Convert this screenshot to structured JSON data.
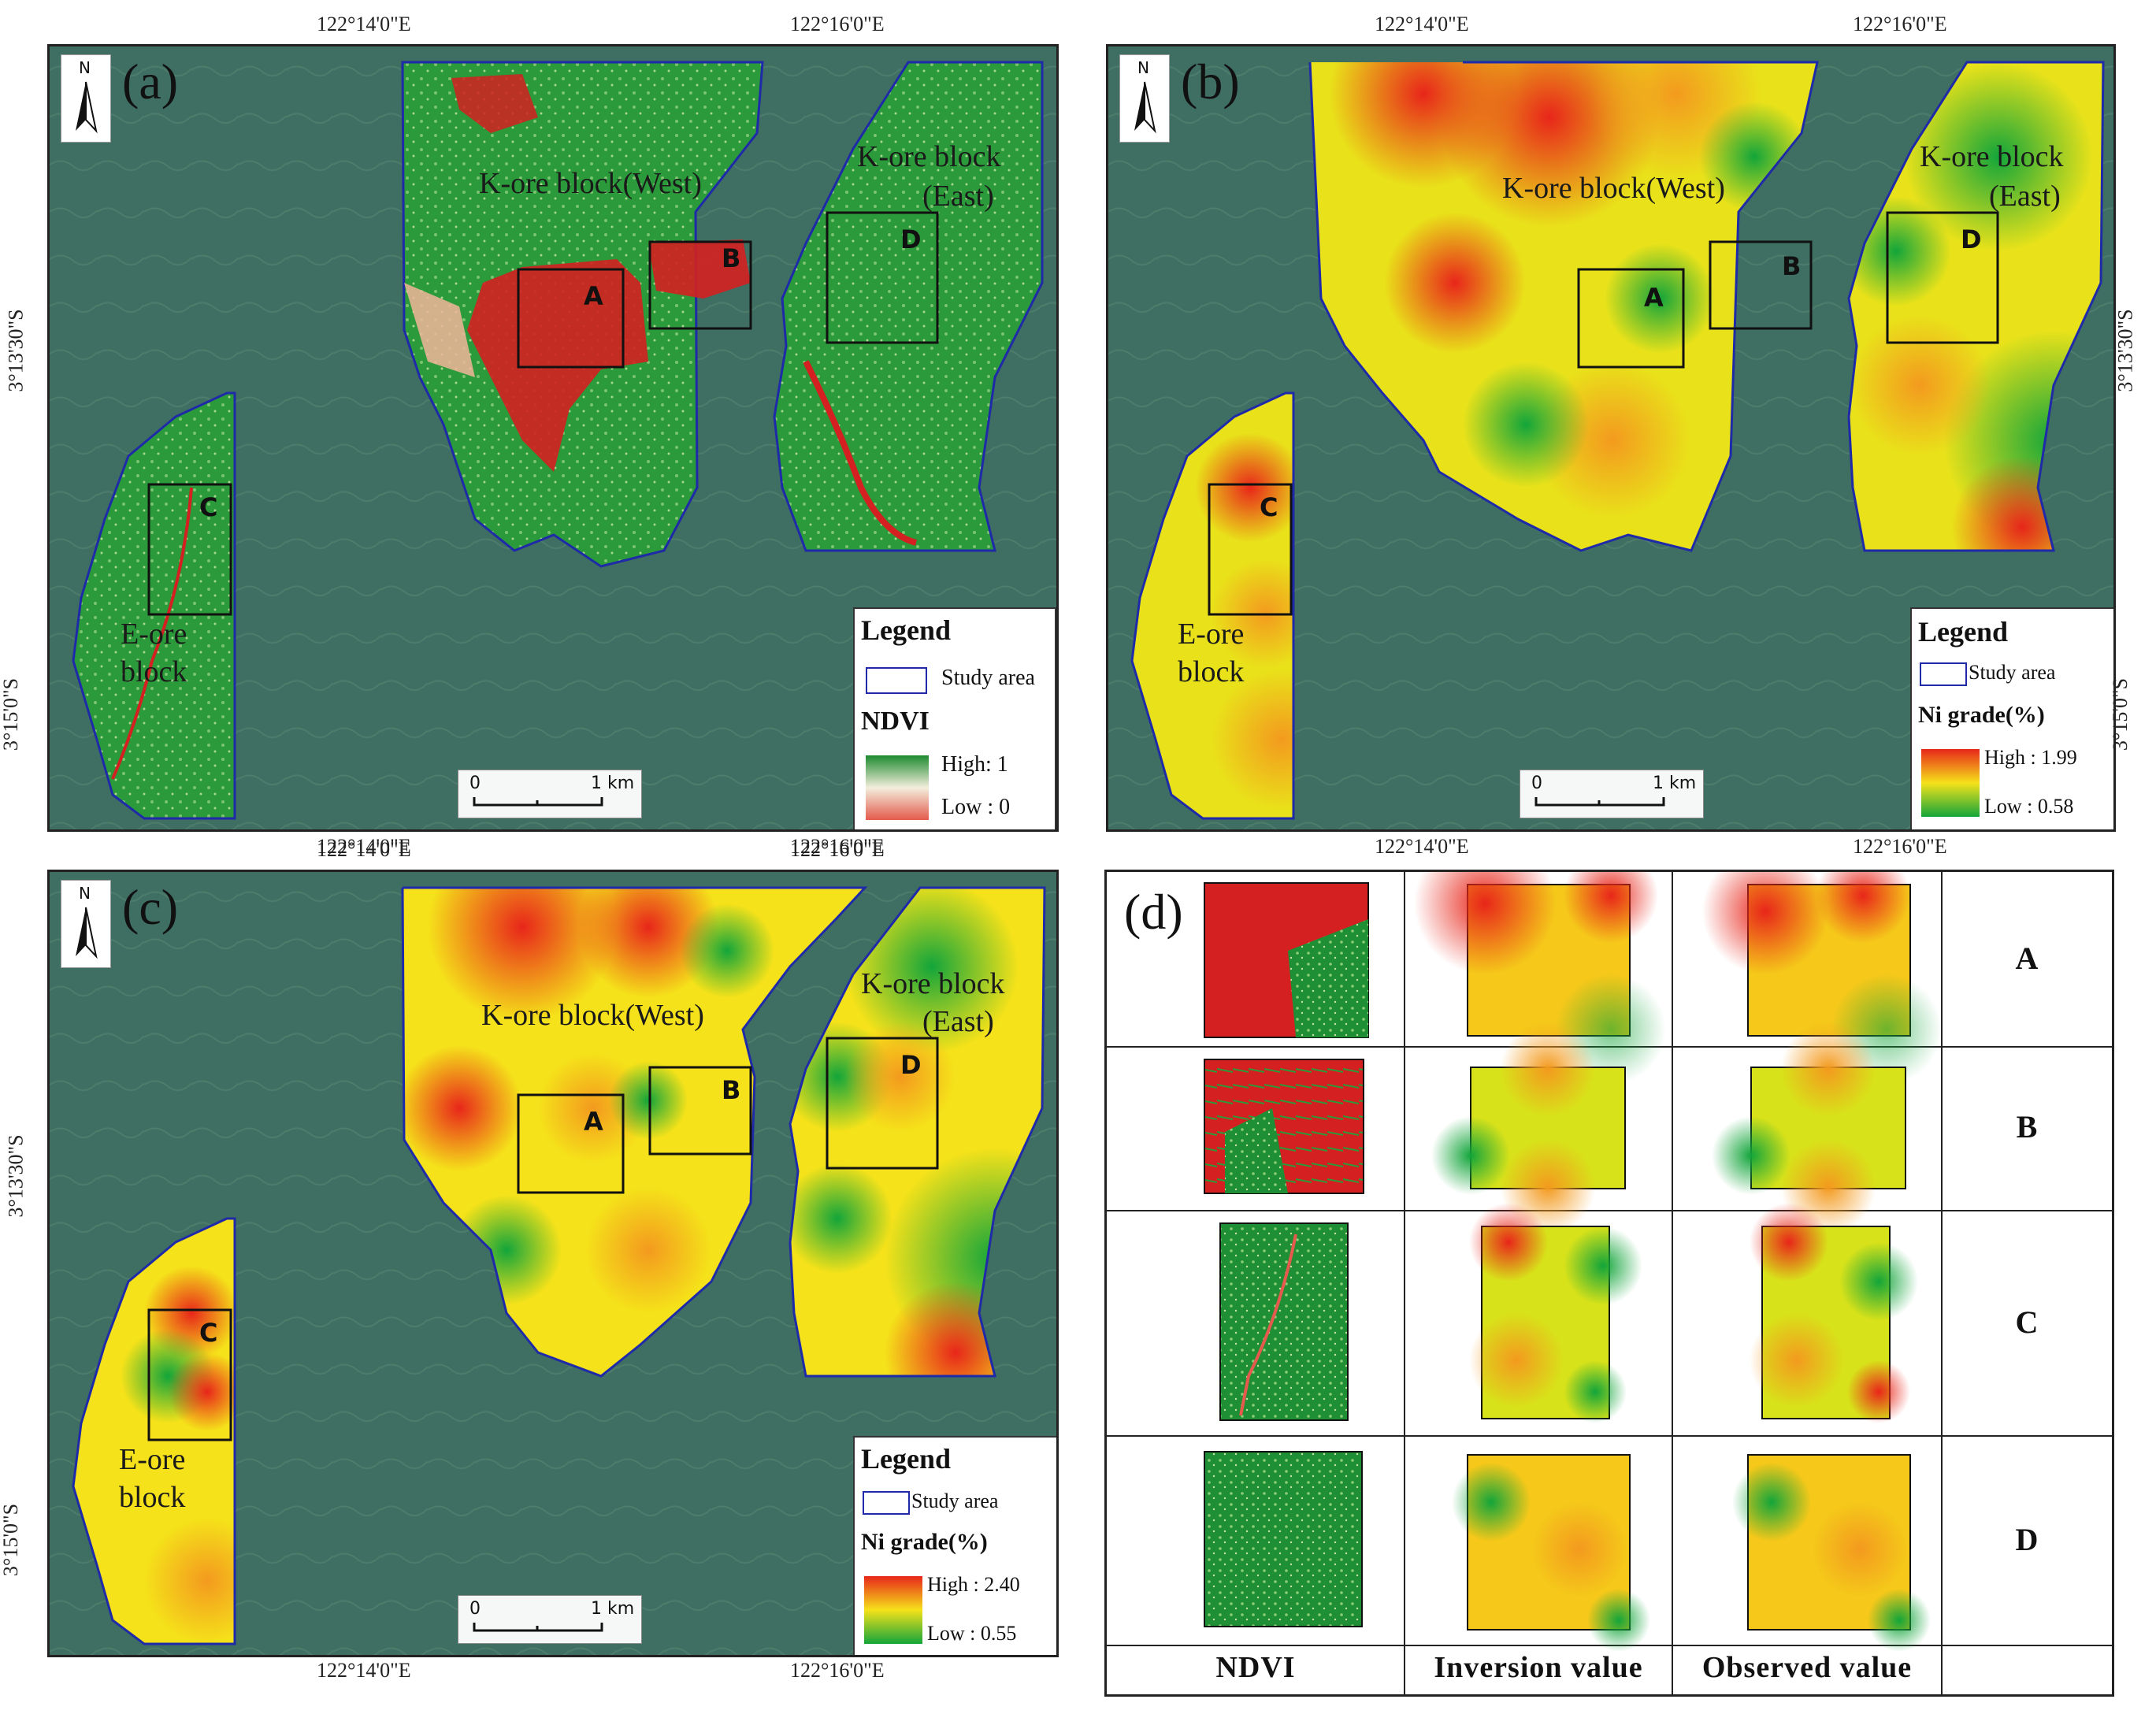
{
  "coords": {
    "lon_left": "122°14'0\"E",
    "lon_right": "122°16'0\"E",
    "lat_upper": "3°13'30\"S",
    "lat_lower": "3°15'0\"S"
  },
  "panels": {
    "a": {
      "label": "(a)",
      "north": "N",
      "k_west": "K-ore block(West)",
      "k_east_1": "K-ore block",
      "k_east_2": "(East)",
      "e_ore_1": "E-ore",
      "e_ore_2": "block",
      "box_a": "A",
      "box_b": "B",
      "box_c": "C",
      "box_d": "D",
      "scale_0": "0",
      "scale_1": "1 km",
      "legend": {
        "title": "Legend",
        "study_area": "Study area",
        "var_title": "NDVI",
        "high": "High: 1",
        "low": "Low : 0"
      }
    },
    "b": {
      "label": "(b)",
      "north": "N",
      "k_west": "K-ore block(West)",
      "k_east_1": "K-ore block",
      "k_east_2": "(East)",
      "e_ore_1": "E-ore",
      "e_ore_2": "block",
      "box_a": "A",
      "box_b": "B",
      "box_c": "C",
      "box_d": "D",
      "scale_0": "0",
      "scale_1": "1 km",
      "legend": {
        "title": "Legend",
        "study_area": "Study area",
        "var_title": "Ni grade(%)",
        "high": "High : 1.99",
        "low": "Low  : 0.58"
      }
    },
    "c": {
      "label": "(c)",
      "north": "N",
      "k_west": "K-ore block(West)",
      "k_east_1": "K-ore block",
      "k_east_2": "(East)",
      "e_ore_1": "E-ore",
      "e_ore_2": "block",
      "box_a": "A",
      "box_b": "B",
      "box_c": "C",
      "box_d": "D",
      "scale_0": "0",
      "scale_1": "1 km",
      "legend": {
        "title": "Legend",
        "study_area": "Study area",
        "var_title": "Ni grade(%)",
        "high": "High : 2.40",
        "low": "Low  : 0.55"
      }
    },
    "d": {
      "label": "(d)",
      "rows": [
        "A",
        "B",
        "C",
        "D"
      ],
      "cols": [
        "NDVI",
        "Inversion value",
        "Observed value"
      ]
    }
  },
  "colors": {
    "background_imagery": "#3f6e63",
    "study_area_outline": "#1f2aa8",
    "ndvi_high": "#1d8a2e",
    "ndvi_low": "#d42020",
    "grade_high": "#e8261a",
    "grade_mid": "#f5e21a",
    "grade_low": "#13a53a"
  }
}
